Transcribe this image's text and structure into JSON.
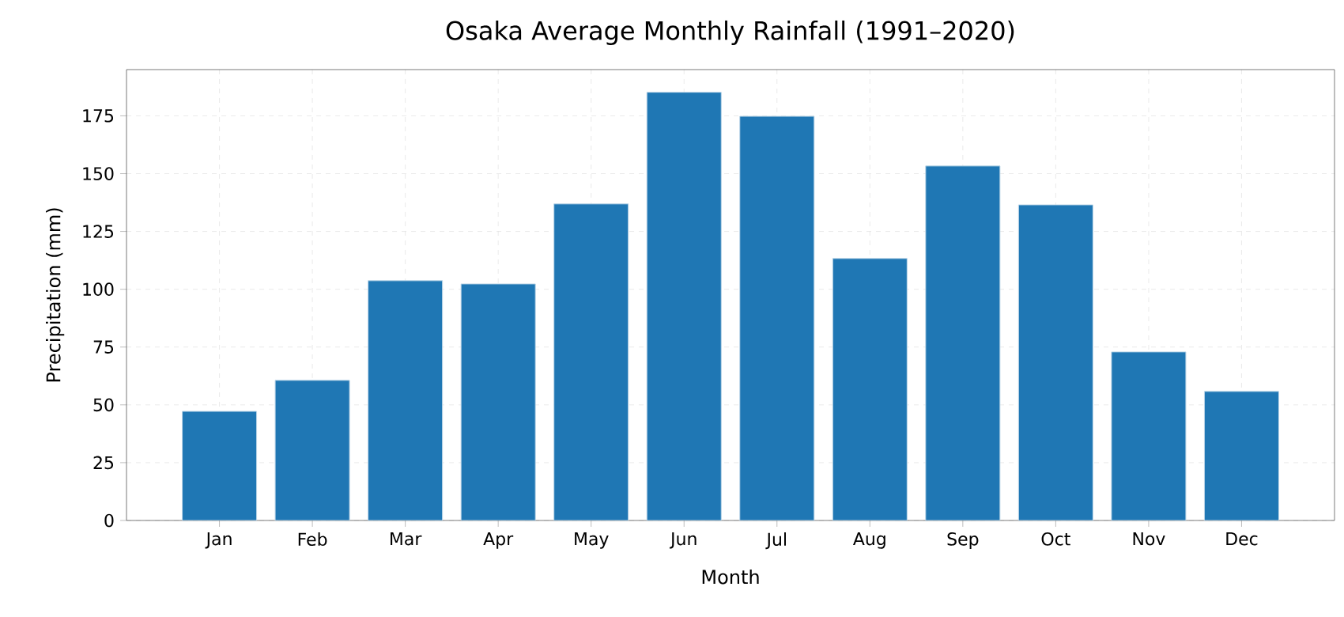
{
  "chart_data": {
    "type": "bar",
    "title": "Osaka Average Monthly Rainfall (1991–2020)",
    "xlabel": "Month",
    "ylabel": "Precipitation (mm)",
    "categories": [
      "Jan",
      "Feb",
      "Mar",
      "Apr",
      "May",
      "Jun",
      "Jul",
      "Aug",
      "Sep",
      "Oct",
      "Nov",
      "Dec"
    ],
    "values": [
      47.2,
      60.6,
      103.7,
      102.3,
      136.9,
      185.2,
      174.8,
      113.3,
      153.3,
      136.5,
      72.9,
      55.8
    ],
    "color": "#1f77b4",
    "ylim": [
      0,
      195
    ],
    "yticks": [
      0,
      25,
      50,
      75,
      100,
      125,
      150,
      175
    ],
    "grid": true
  }
}
